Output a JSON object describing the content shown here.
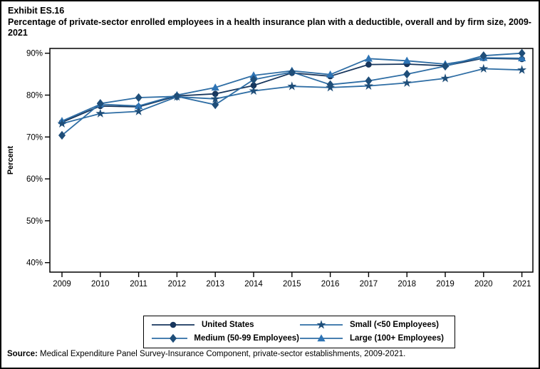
{
  "title": {
    "exhibit": "Exhibit ES.16",
    "text": "Percentage of private-sector enrolled employees in a health insurance plan with a deductible, overall and by firm size, 2009-2021"
  },
  "chart_data": {
    "type": "line",
    "x": [
      2009,
      2010,
      2011,
      2012,
      2013,
      2014,
      2015,
      2016,
      2017,
      2018,
      2019,
      2020,
      2021
    ],
    "series": [
      {
        "name": "United States",
        "marker": "circle",
        "marker_color": "#17365D",
        "line_color": "#17365D",
        "values": [
          73.5,
          77.4,
          77.2,
          79.8,
          80.3,
          82.3,
          85.3,
          84.5,
          87.3,
          87.4,
          87.0,
          88.8,
          88.6
        ]
      },
      {
        "name": "Small (<50 Employees)",
        "marker": "star",
        "marker_color": "#1F4E79",
        "line_color": "#2E6DA4",
        "values": [
          73.2,
          75.6,
          76.1,
          79.6,
          79.1,
          81.0,
          82.1,
          81.8,
          82.2,
          82.9,
          84.0,
          86.3,
          86.0
        ]
      },
      {
        "name": "Medium (50-99 Employees)",
        "marker": "diamond",
        "marker_color": "#1F4E79",
        "line_color": "#2E6DA4",
        "values": [
          70.4,
          78.0,
          79.4,
          79.7,
          77.7,
          83.7,
          85.5,
          82.5,
          83.4,
          85.0,
          86.9,
          89.4,
          90.0
        ]
      },
      {
        "name": "Large (100+ Employees)",
        "marker": "triangle",
        "marker_color": "#2E74B5",
        "line_color": "#2E6DA4",
        "values": [
          73.8,
          77.8,
          77.4,
          80.0,
          81.8,
          84.7,
          85.8,
          84.9,
          88.7,
          88.2,
          87.4,
          88.9,
          88.8
        ]
      }
    ],
    "xlabel": "",
    "ylabel": "Percent",
    "ylim": [
      40,
      90
    ],
    "yticks": [
      40,
      50,
      60,
      70,
      80,
      90
    ],
    "ytick_suffix": "%",
    "grid": false,
    "legend_position": "bottom",
    "legend_columns": 2
  },
  "source": {
    "label": "Source:",
    "text": " Medical Expenditure Panel Survey-Insurance Component, private-sector establishments, 2009-2021."
  }
}
